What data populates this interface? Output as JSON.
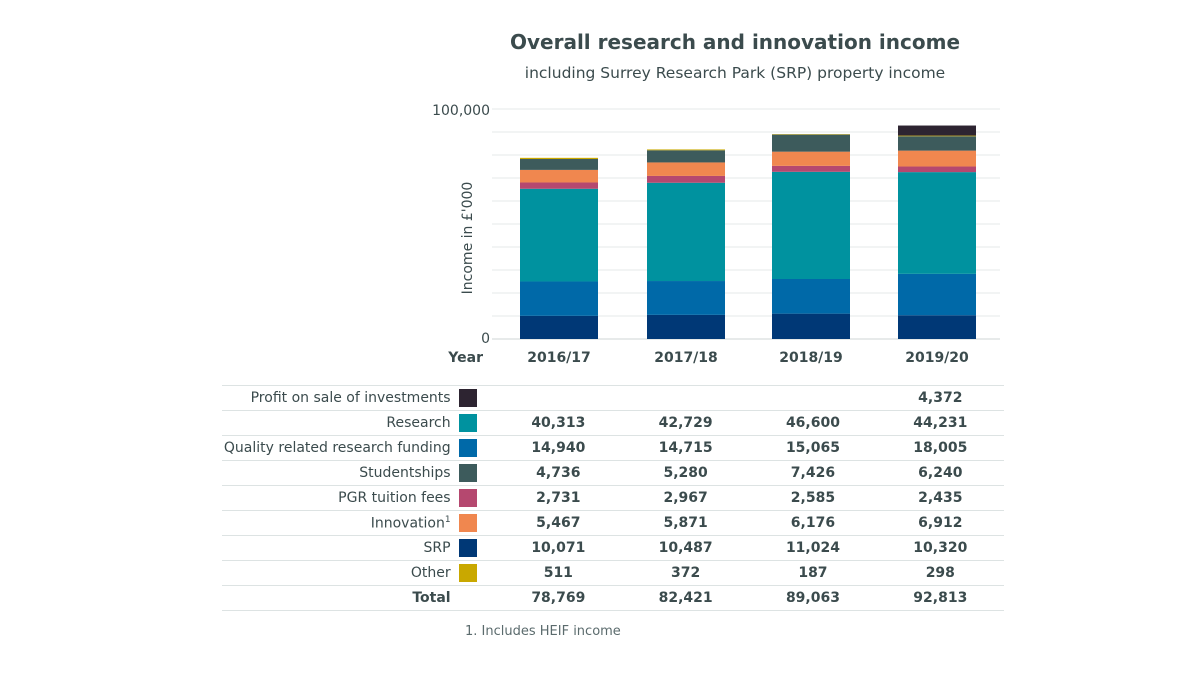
{
  "chart_data": {
    "type": "bar",
    "stacked": true,
    "title": "Overall research and innovation income",
    "subtitle": "including Surrey Research Park (SRP) property income",
    "xlabel": "Year",
    "ylabel": "Income in £'000",
    "ylim": [
      0,
      100000
    ],
    "y_ticks": [
      "0",
      "100,000"
    ],
    "categories": [
      "2016/17",
      "2017/18",
      "2018/19",
      "2019/20"
    ],
    "series": [
      {
        "name": "SRP",
        "color": "#003876",
        "values": [
          10071,
          10487,
          11024,
          10320
        ]
      },
      {
        "name": "Quality related research funding",
        "color": "#0069a8",
        "values": [
          14940,
          14715,
          15065,
          18005
        ]
      },
      {
        "name": "Research",
        "color": "#00929f",
        "values": [
          40313,
          42729,
          46600,
          44231
        ]
      },
      {
        "name": "PGR tuition fees",
        "color": "#b5486f",
        "values": [
          2731,
          2967,
          2585,
          2435
        ]
      },
      {
        "name": "Innovation",
        "superscript": "1",
        "color": "#f0874f",
        "values": [
          5467,
          5871,
          6176,
          6912
        ]
      },
      {
        "name": "Studentships",
        "color": "#3d5b5c",
        "values": [
          4736,
          5280,
          7426,
          6240
        ]
      },
      {
        "name": "Other",
        "color": "#c9a800",
        "values": [
          511,
          372,
          187,
          298
        ]
      },
      {
        "name": "Profit on sale of investments",
        "color": "#2d2431",
        "values": [
          null,
          null,
          null,
          4372
        ]
      }
    ],
    "table": {
      "rows": [
        {
          "label": "Profit on sale of investments",
          "color": "#2d2431",
          "cells": [
            "",
            "",
            "",
            "4,372"
          ]
        },
        {
          "label": "Research",
          "color": "#00929f",
          "cells": [
            "40,313",
            "42,729",
            "46,600",
            "44,231"
          ]
        },
        {
          "label": "Quality related research funding",
          "color": "#0069a8",
          "cells": [
            "14,940",
            "14,715",
            "15,065",
            "18,005"
          ]
        },
        {
          "label": "Studentships",
          "color": "#3d5b5c",
          "cells": [
            "4,736",
            "5,280",
            "7,426",
            "6,240"
          ]
        },
        {
          "label": "PGR tuition fees",
          "color": "#b5486f",
          "cells": [
            "2,731",
            "2,967",
            "2,585",
            "2,435"
          ]
        },
        {
          "label": "Innovation",
          "superscript": "1",
          "color": "#f0874f",
          "cells": [
            "5,467",
            "5,871",
            "6,176",
            "6,912"
          ]
        },
        {
          "label": "SRP",
          "color": "#003876",
          "cells": [
            "10,071",
            "10,487",
            "11,024",
            "10,320"
          ]
        },
        {
          "label": "Other",
          "color": "#c9a800",
          "cells": [
            "511",
            "372",
            "187",
            "298"
          ]
        }
      ],
      "total": {
        "label": "Total",
        "cells": [
          "78,769",
          "82,421",
          "89,063",
          "92,813"
        ]
      }
    },
    "footnote": "1. Includes HEIF income"
  }
}
